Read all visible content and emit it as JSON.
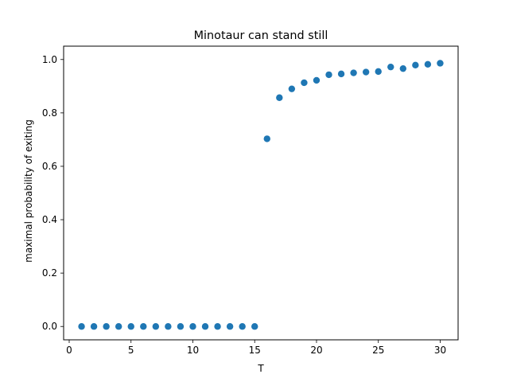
{
  "chart_data": {
    "type": "scatter",
    "title": "Minotaur can stand still",
    "xlabel": "T",
    "ylabel": "maximal probability of exiting",
    "xlim": [
      -0.45,
      31.45
    ],
    "ylim": [
      -0.05,
      1.05
    ],
    "x_ticks": [
      0,
      5,
      10,
      15,
      20,
      25,
      30
    ],
    "y_ticks": [
      0.0,
      0.2,
      0.4,
      0.6,
      0.8,
      1.0
    ],
    "x_tick_labels": [
      "0",
      "5",
      "10",
      "15",
      "20",
      "25",
      "30"
    ],
    "y_tick_labels": [
      "0.0",
      "0.2",
      "0.4",
      "0.6",
      "0.8",
      "1.0"
    ],
    "grid": false,
    "series": [
      {
        "color": "#1f77b4",
        "x": [
          1,
          2,
          3,
          4,
          5,
          6,
          7,
          8,
          9,
          10,
          11,
          12,
          13,
          14,
          15,
          16,
          17,
          18,
          19,
          20,
          21,
          22,
          23,
          24,
          25,
          26,
          27,
          28,
          29,
          30
        ],
        "y": [
          0,
          0,
          0,
          0,
          0,
          0,
          0,
          0,
          0,
          0,
          0,
          0,
          0,
          0,
          0,
          0.703,
          0.857,
          0.89,
          0.913,
          0.922,
          0.943,
          0.946,
          0.95,
          0.953,
          0.955,
          0.972,
          0.966,
          0.979,
          0.982,
          0.986
        ]
      }
    ]
  }
}
